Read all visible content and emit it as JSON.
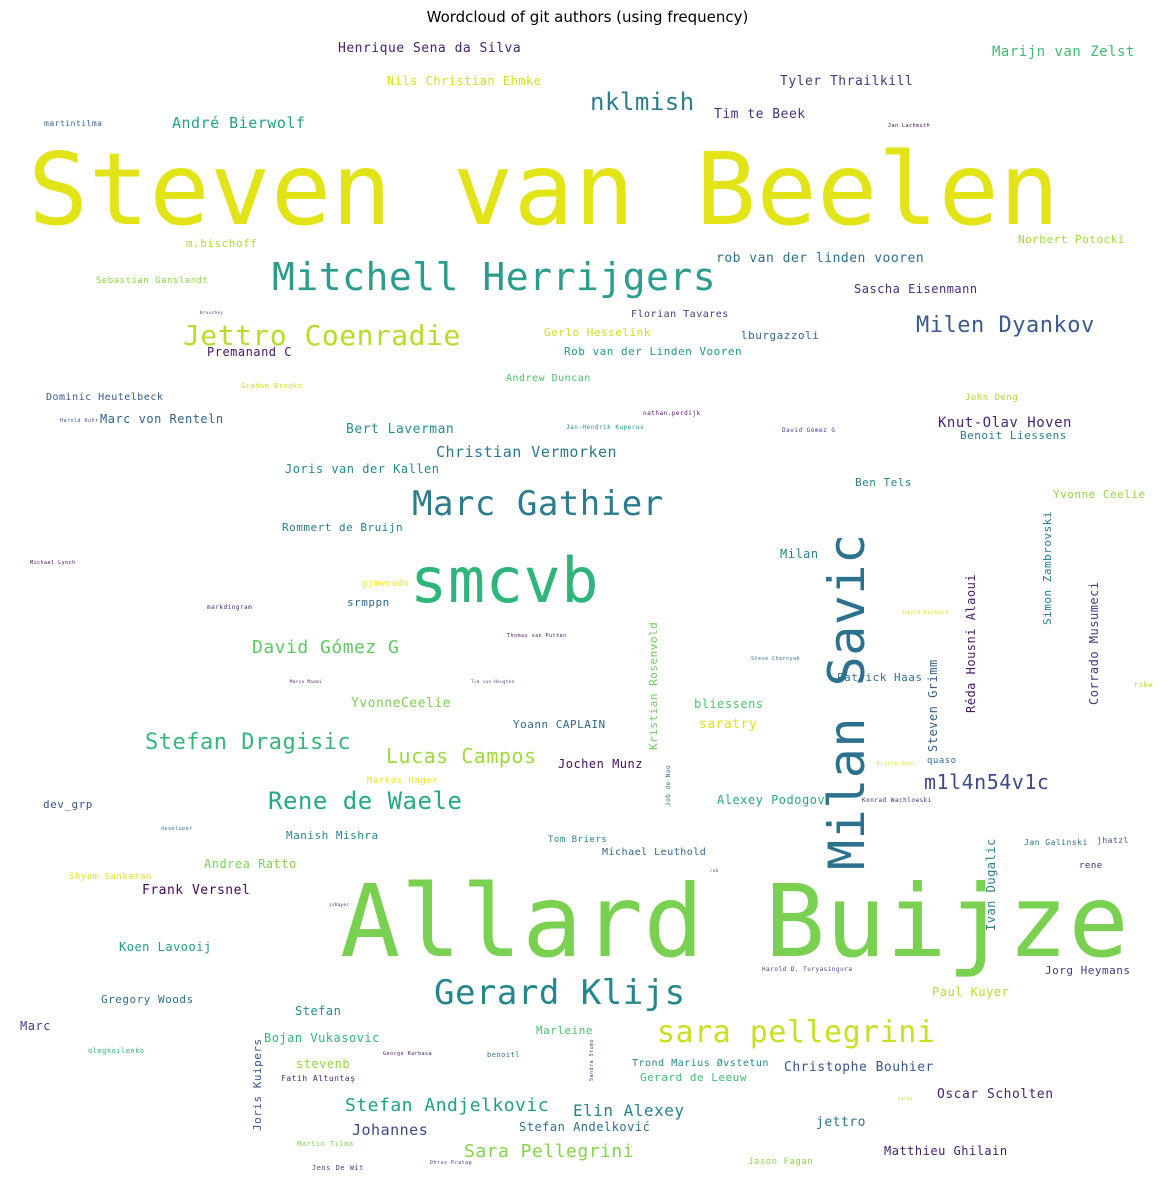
{
  "chart_data": {
    "type": "wordcloud",
    "title": "Wordcloud of git authors (using frequency)",
    "words": [
      {
        "text": "Steven van Beelen",
        "color": "#e2e418"
      },
      {
        "text": "Allard Buijze",
        "color": "#7ad151"
      },
      {
        "text": "smcvb",
        "color": "#2fb47c"
      },
      {
        "text": "Milan Savic",
        "color": "#2c728e"
      },
      {
        "text": "Mitchell Herrijgers",
        "color": "#2a9d8f"
      },
      {
        "text": "Marc Gathier",
        "color": "#2c7b8e"
      },
      {
        "text": "Gerard Klijs",
        "color": "#24868e"
      },
      {
        "text": "sara pellegrini",
        "color": "#c8e020"
      },
      {
        "text": "Jettro Coenradie",
        "color": "#b5de2b"
      },
      {
        "text": "Milen Dyankov",
        "color": "#3b5a8c"
      },
      {
        "text": "nklmish",
        "color": "#2c7f8e"
      },
      {
        "text": "Rene de Waele",
        "color": "#25ab82"
      },
      {
        "text": "Stefan Dragisic",
        "color": "#35b779"
      },
      {
        "text": "Lucas Campos",
        "color": "#9fda3a"
      },
      {
        "text": "m1l4n54v1c",
        "color": "#3e4a89"
      },
      {
        "text": "David Gómez G",
        "color": "#5ec962"
      },
      {
        "text": "Stefan Andjelkovic",
        "color": "#1fa088"
      },
      {
        "text": "Sara Pellegrini",
        "color": "#84d44b"
      },
      {
        "text": "Elin Alexey",
        "color": "#26818e"
      },
      {
        "text": "Johannes",
        "color": "#3f4788"
      },
      {
        "text": "Christian Vermorken",
        "color": "#2a788e"
      },
      {
        "text": "André Bierwolf",
        "color": "#20a486"
      },
      {
        "text": "Knut-Olav Hoven",
        "color": "#482475"
      },
      {
        "text": "Henrique Sena da Silva",
        "color": "#481f70"
      },
      {
        "text": "Marijn van Zelst",
        "color": "#3fbc73"
      },
      {
        "text": "Tyler Thrailkill",
        "color": "#443983"
      },
      {
        "text": "Nils Christian Ehmke",
        "color": "#d5e21a"
      },
      {
        "text": "Tim te Beek",
        "color": "#46327e"
      },
      {
        "text": "martintilma",
        "color": "#33638d"
      },
      {
        "text": "Jan Lachmuth",
        "color": "#440154"
      },
      {
        "text": "m.bischoff",
        "color": "#b0dd2f"
      },
      {
        "text": "Norbert Potocki",
        "color": "#a0da39"
      },
      {
        "text": "rob van der linden vooren",
        "color": "#2d708e"
      },
      {
        "text": "Sebastian Ganslandt",
        "color": "#8ed645"
      },
      {
        "text": "Sascha Eisenmann",
        "color": "#472d7b"
      },
      {
        "text": "bruschey",
        "color": "#482173"
      },
      {
        "text": "Florian Tavares",
        "color": "#433e85"
      },
      {
        "text": "Gerlo Hesselink",
        "color": "#cae11f"
      },
      {
        "text": "lburgazzoli",
        "color": "#31688e"
      },
      {
        "text": "Premanand C",
        "color": "#471365"
      },
      {
        "text": "Rob van der Linden Vooren",
        "color": "#1e9c89"
      },
      {
        "text": "Andrew Duncan",
        "color": "#4ac16d"
      },
      {
        "text": "Graham Brooks",
        "color": "#d0e11c"
      },
      {
        "text": "Dominic Heutelbeck",
        "color": "#38588c"
      },
      {
        "text": "John Deng",
        "color": "#addc30"
      },
      {
        "text": "nathan.perdijk",
        "color": "#5b0f6e"
      },
      {
        "text": "Harold Kuhr",
        "color": "#39568c"
      },
      {
        "text": "Marc von Renteln",
        "color": "#355f8d"
      },
      {
        "text": "Jan-Hendrik Kuperus",
        "color": "#1f988b"
      },
      {
        "text": "David Gómez G",
        "color": "#443a83"
      },
      {
        "text": "Bert Laverman",
        "color": "#21918c"
      },
      {
        "text": "Benoit Liessens",
        "color": "#287c8e"
      },
      {
        "text": "Joris van der Kallen",
        "color": "#23898e"
      },
      {
        "text": "Ben Tels",
        "color": "#26828e"
      },
      {
        "text": "Yvonne Ceelie",
        "color": "#95d840"
      },
      {
        "text": "Rommert de Bruijn",
        "color": "#287d8e"
      },
      {
        "text": "Simon Zambrovski",
        "color": "#2a788e"
      },
      {
        "text": "Milan",
        "color": "#25848e"
      },
      {
        "text": "Réda Housni Alaoui",
        "color": "#481769"
      },
      {
        "text": "Michael Lynch",
        "color": "#440154"
      },
      {
        "text": "gjmwoods",
        "color": "#fde725"
      },
      {
        "text": "srmppn",
        "color": "#31688e"
      },
      {
        "text": "Corrado Musumeci",
        "color": "#453781"
      },
      {
        "text": "markdingram",
        "color": "#482878"
      },
      {
        "text": "David Kalkoli",
        "color": "#d8e219"
      },
      {
        "text": "Thomas van Putten",
        "color": "#481467"
      },
      {
        "text": "Kristian Rosenvold",
        "color": "#6ccd5a"
      },
      {
        "text": "Steve Chernyak",
        "color": "#2c728e"
      },
      {
        "text": "Marco Maami",
        "color": "#460a5d"
      },
      {
        "text": "Tim van Heugten",
        "color": "#453882"
      },
      {
        "text": "Patrick Haas",
        "color": "#2c738e"
      },
      {
        "text": "Steven Grimm",
        "color": "#34608d"
      },
      {
        "text": "rikw",
        "color": "#b8de29"
      },
      {
        "text": "YvonneCeelie",
        "color": "#7ad151"
      },
      {
        "text": "bliessens",
        "color": "#4ec36b"
      },
      {
        "text": "Yoann CAPLAIN",
        "color": "#31688e"
      },
      {
        "text": "saratry",
        "color": "#dde318"
      },
      {
        "text": "quaso",
        "color": "#2c718e"
      },
      {
        "text": "Jochen Munz",
        "color": "#460b5e"
      },
      {
        "text": "Markus Hager",
        "color": "#f1e51d"
      },
      {
        "text": "Kriyle-Dett",
        "color": "#e5e419"
      },
      {
        "text": "dev_grp",
        "color": "#3b528b"
      },
      {
        "text": "Job de Noo",
        "color": "#2d708e"
      },
      {
        "text": "Alexey Podogov",
        "color": "#25ac82"
      },
      {
        "text": "Konrad Wachlowski",
        "color": "#472a7a"
      },
      {
        "text": "developer",
        "color": "#2c728e"
      },
      {
        "text": "Manish Mishra",
        "color": "#24878e"
      },
      {
        "text": "Tom Briers",
        "color": "#26818e"
      },
      {
        "text": "Ivan Dugalic",
        "color": "#25838e"
      },
      {
        "text": "Jan Galinski",
        "color": "#2d708e"
      },
      {
        "text": "jhatzl",
        "color": "#3b528b"
      },
      {
        "text": "Michael Leuthold",
        "color": "#33638d"
      },
      {
        "text": "Andrea Ratto",
        "color": "#7fd34e"
      },
      {
        "text": "rnk",
        "color": "#481f70"
      },
      {
        "text": "rene",
        "color": "#482878"
      },
      {
        "text": "Shyam Sankaran",
        "color": "#e7e419"
      },
      {
        "text": "Frank Versnel",
        "color": "#46075a"
      },
      {
        "text": "jsbayer",
        "color": "#440154"
      },
      {
        "text": "Koen Lavooij",
        "color": "#1f9e89"
      },
      {
        "text": "Harold D. Turyasingura",
        "color": "#3e4989"
      },
      {
        "text": "Jorg Heymans",
        "color": "#443983"
      },
      {
        "text": "Paul Kuyer",
        "color": "#b5de2b"
      },
      {
        "text": "Gregory Woods",
        "color": "#2b748e"
      },
      {
        "text": "Stefan",
        "color": "#228c8d"
      },
      {
        "text": "Marc",
        "color": "#414487"
      },
      {
        "text": "Bojan Vukasovic",
        "color": "#35b779"
      },
      {
        "text": "Marleine",
        "color": "#4ac16d"
      },
      {
        "text": "olegkoilenko",
        "color": "#2fb47c"
      },
      {
        "text": "George Karbasa",
        "color": "#471063"
      },
      {
        "text": "benoitl",
        "color": "#2d718e"
      },
      {
        "text": "Sandra Stumo",
        "color": "#453581"
      },
      {
        "text": "Joris Kuipers",
        "color": "#3b528b"
      },
      {
        "text": "stevenb",
        "color": "#90d743"
      },
      {
        "text": "Trond Marius Øvstetun",
        "color": "#23888e"
      },
      {
        "text": "Christophe Bouhier",
        "color": "#39568c"
      },
      {
        "text": "Fatih Altuntaş",
        "color": "#482677"
      },
      {
        "text": "Gerard de Leeuw",
        "color": "#40bd72"
      },
      {
        "text": "Oscar Scholten",
        "color": "#481f70"
      },
      {
        "text": "Vardo",
        "color": "#b8de29"
      },
      {
        "text": "jettro",
        "color": "#2a788e"
      },
      {
        "text": "Stefan Andelković",
        "color": "#2c718e"
      },
      {
        "text": "Martin Tilma",
        "color": "#7ad151"
      },
      {
        "text": "Matthieu Ghilain",
        "color": "#481b6d"
      },
      {
        "text": "Jens De Wit",
        "color": "#3e4a89"
      },
      {
        "text": "Dhruv Pratap",
        "color": "#3f4889"
      },
      {
        "text": "Jason Fagan",
        "color": "#8fd744"
      }
    ]
  }
}
